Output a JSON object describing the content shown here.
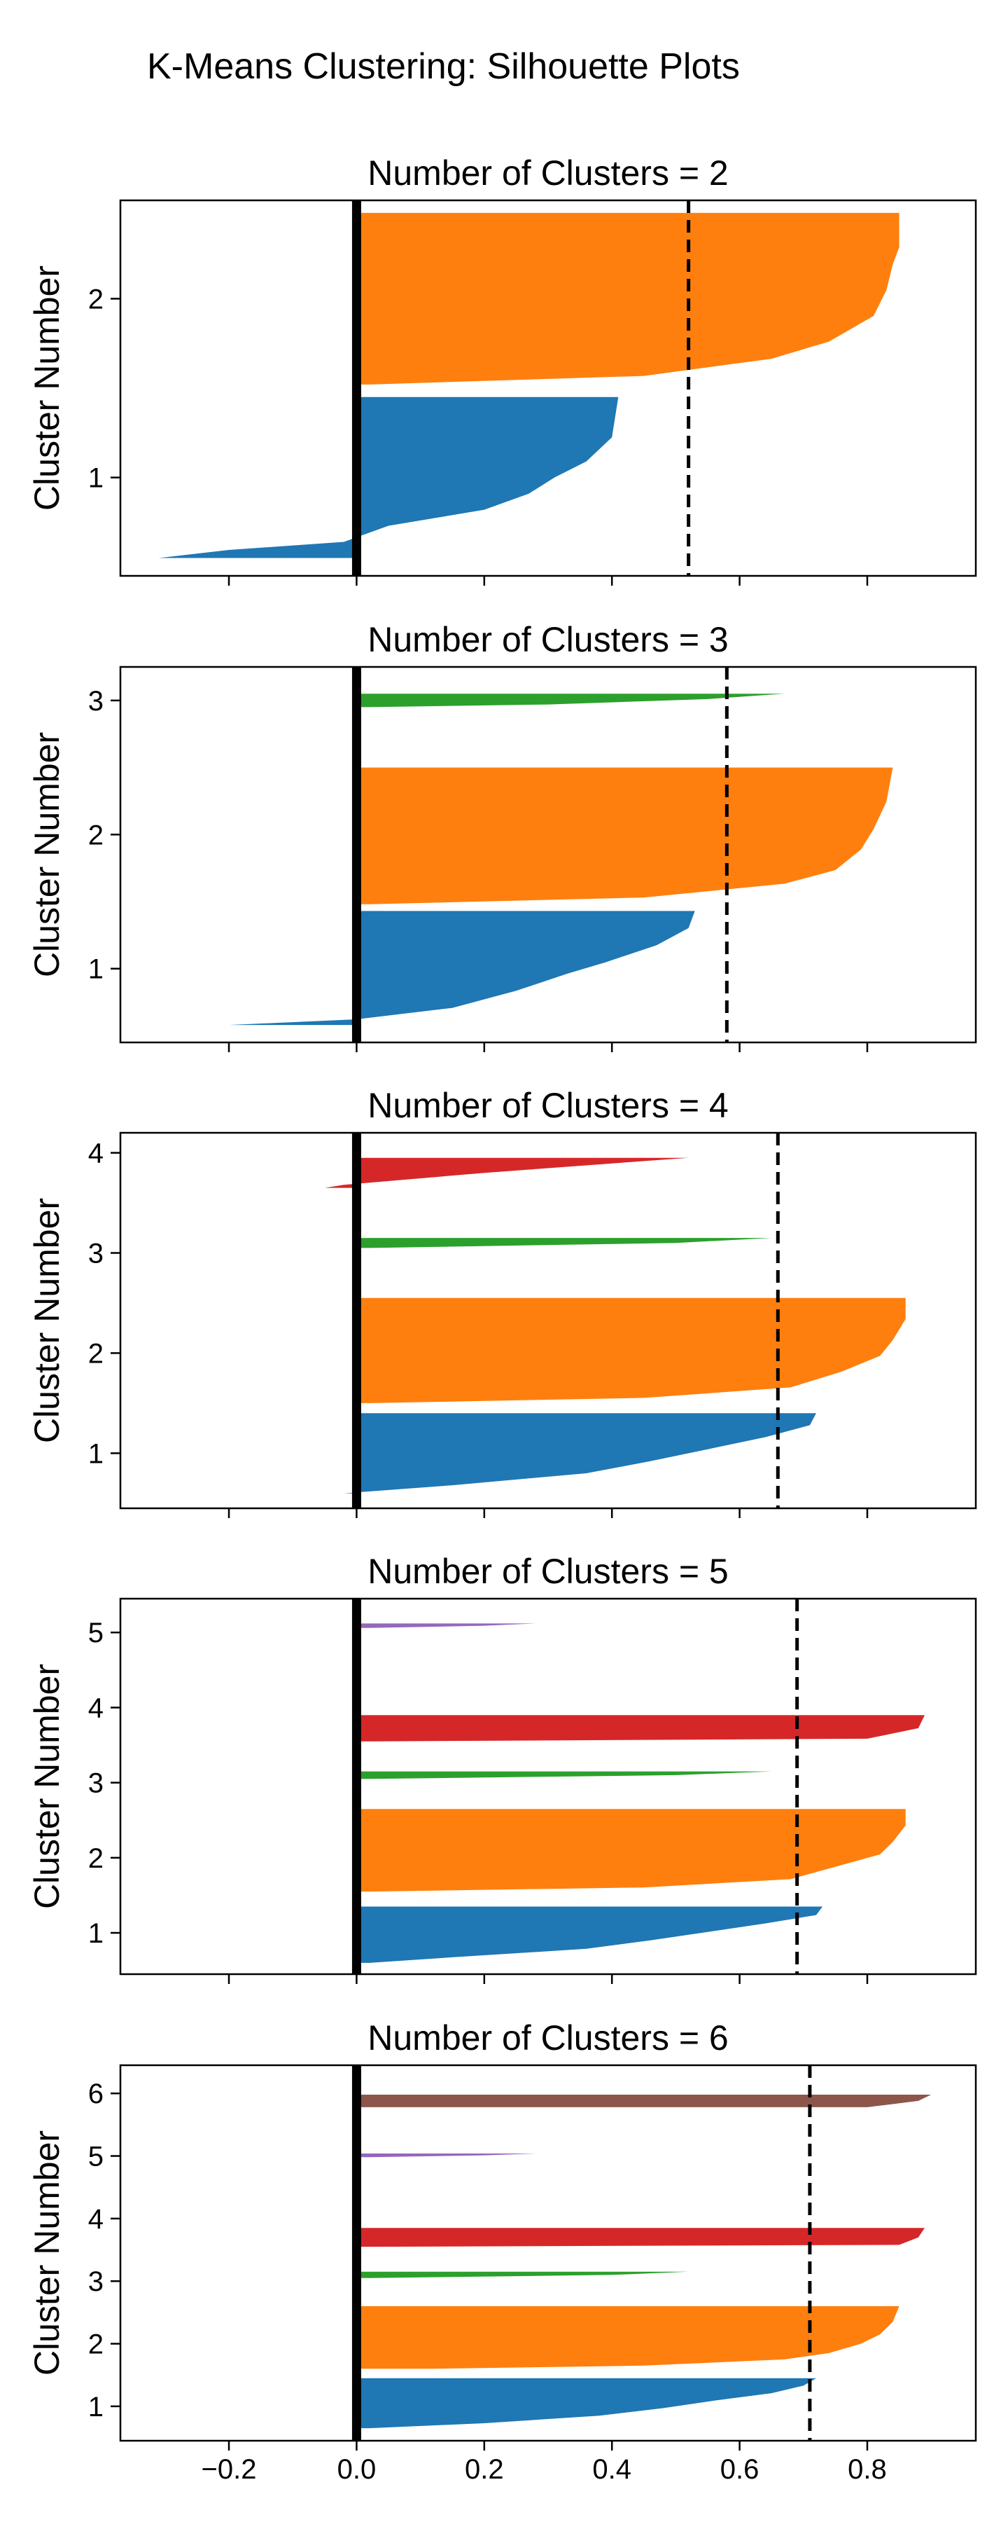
{
  "figure": {
    "suptitle": "K-Means Clustering: Silhouette Plots"
  },
  "colors": {
    "1": "#1f77b4",
    "2": "#ff7f0e",
    "3": "#2ca02c",
    "4": "#d62728",
    "5": "#9467bd",
    "6": "#8c564b",
    "zero_line": "#000000",
    "avg_line": "#000000"
  },
  "chart_data": [
    {
      "type": "area",
      "title": "Number of Clusters = 2",
      "ylabel": "Cluster Number",
      "xlim": [
        -0.37,
        0.97
      ],
      "xticks": [
        "−0.2",
        "0.0",
        "0.2",
        "0.4",
        "0.6",
        "0.8"
      ],
      "xtick_values": [
        -0.2,
        0.0,
        0.2,
        0.4,
        0.6,
        0.8
      ],
      "show_xtick_labels": false,
      "ylim": [
        0.45,
        2.55
      ],
      "yticks": [
        "1",
        "2"
      ],
      "ytick_values": [
        1,
        2
      ],
      "avg_silhouette": 0.52,
      "series": [
        {
          "name": "1",
          "y_range": [
            0.55,
            1.45
          ],
          "profile": [
            [
              0,
              0.41
            ],
            [
              0.25,
              0.4
            ],
            [
              0.4,
              0.36
            ],
            [
              0.5,
              0.31
            ],
            [
              0.6,
              0.27
            ],
            [
              0.7,
              0.2
            ],
            [
              0.8,
              0.05
            ],
            [
              0.9,
              -0.02
            ],
            [
              0.95,
              -0.2
            ],
            [
              1,
              -0.31
            ]
          ]
        },
        {
          "name": "2",
          "y_range": [
            1.52,
            2.48
          ],
          "profile": [
            [
              0,
              0.85
            ],
            [
              0.2,
              0.85
            ],
            [
              0.3,
              0.84
            ],
            [
              0.45,
              0.83
            ],
            [
              0.6,
              0.81
            ],
            [
              0.75,
              0.74
            ],
            [
              0.85,
              0.65
            ],
            [
              0.95,
              0.45
            ],
            [
              1,
              0.02
            ]
          ]
        }
      ]
    },
    {
      "type": "area",
      "title": "Number of Clusters = 3",
      "ylabel": "Cluster Number",
      "xlim": [
        -0.37,
        0.97
      ],
      "xticks": [
        "−0.2",
        "0.0",
        "0.2",
        "0.4",
        "0.6",
        "0.8"
      ],
      "xtick_values": [
        -0.2,
        0.0,
        0.2,
        0.4,
        0.6,
        0.8
      ],
      "show_xtick_labels": false,
      "ylim": [
        0.45,
        3.25
      ],
      "yticks": [
        "1",
        "2",
        "3"
      ],
      "ytick_values": [
        1,
        2,
        3
      ],
      "avg_silhouette": 0.58,
      "series": [
        {
          "name": "1",
          "y_range": [
            0.58,
            1.43
          ],
          "profile": [
            [
              0,
              0.53
            ],
            [
              0.15,
              0.52
            ],
            [
              0.3,
              0.47
            ],
            [
              0.45,
              0.39
            ],
            [
              0.55,
              0.33
            ],
            [
              0.7,
              0.25
            ],
            [
              0.85,
              0.15
            ],
            [
              0.95,
              0.0
            ],
            [
              1,
              -0.2
            ]
          ]
        },
        {
          "name": "2",
          "y_range": [
            1.48,
            2.5
          ],
          "profile": [
            [
              0,
              0.84
            ],
            [
              0.25,
              0.83
            ],
            [
              0.45,
              0.81
            ],
            [
              0.6,
              0.79
            ],
            [
              0.75,
              0.75
            ],
            [
              0.85,
              0.67
            ],
            [
              0.95,
              0.45
            ],
            [
              1,
              0.02
            ]
          ]
        },
        {
          "name": "3",
          "y_range": [
            2.95,
            3.05
          ],
          "profile": [
            [
              0,
              0.67
            ],
            [
              0.4,
              0.55
            ],
            [
              0.8,
              0.3
            ],
            [
              1,
              0.02
            ]
          ]
        }
      ]
    },
    {
      "type": "area",
      "title": "Number of Clusters = 4",
      "ylabel": "Cluster Number",
      "xlim": [
        -0.37,
        0.97
      ],
      "xticks": [
        "−0.2",
        "0.0",
        "0.2",
        "0.4",
        "0.6",
        "0.8"
      ],
      "xtick_values": [
        -0.2,
        0.0,
        0.2,
        0.4,
        0.6,
        0.8
      ],
      "show_xtick_labels": false,
      "ylim": [
        0.45,
        4.2
      ],
      "yticks": [
        "1",
        "2",
        "3",
        "4"
      ],
      "ytick_values": [
        1,
        2,
        3,
        4
      ],
      "avg_silhouette": 0.66,
      "series": [
        {
          "name": "1",
          "y_range": [
            0.6,
            1.4
          ],
          "profile": [
            [
              0,
              0.72
            ],
            [
              0.15,
              0.71
            ],
            [
              0.3,
              0.64
            ],
            [
              0.45,
              0.55
            ],
            [
              0.6,
              0.46
            ],
            [
              0.75,
              0.36
            ],
            [
              0.9,
              0.15
            ],
            [
              1,
              -0.02
            ]
          ]
        },
        {
          "name": "2",
          "y_range": [
            1.5,
            2.55
          ],
          "profile": [
            [
              0,
              0.86
            ],
            [
              0.2,
              0.86
            ],
            [
              0.4,
              0.84
            ],
            [
              0.55,
              0.82
            ],
            [
              0.7,
              0.76
            ],
            [
              0.85,
              0.68
            ],
            [
              0.95,
              0.45
            ],
            [
              1,
              0.02
            ]
          ]
        },
        {
          "name": "3",
          "y_range": [
            3.05,
            3.15
          ],
          "profile": [
            [
              0,
              0.65
            ],
            [
              0.5,
              0.5
            ],
            [
              1,
              0.02
            ]
          ]
        },
        {
          "name": "4",
          "y_range": [
            3.65,
            3.95
          ],
          "profile": [
            [
              0,
              0.52
            ],
            [
              0.5,
              0.2
            ],
            [
              0.9,
              -0.02
            ],
            [
              1,
              -0.05
            ]
          ]
        }
      ]
    },
    {
      "type": "area",
      "title": "Number of Clusters = 5",
      "ylabel": "Cluster Number",
      "xlim": [
        -0.37,
        0.97
      ],
      "xticks": [
        "−0.2",
        "0.0",
        "0.2",
        "0.4",
        "0.6",
        "0.8"
      ],
      "xtick_values": [
        -0.2,
        0.0,
        0.2,
        0.4,
        0.6,
        0.8
      ],
      "show_xtick_labels": false,
      "ylim": [
        0.45,
        5.45
      ],
      "yticks": [
        "1",
        "2",
        "3",
        "4",
        "5"
      ],
      "ytick_values": [
        1,
        2,
        3,
        4,
        5
      ],
      "avg_silhouette": 0.69,
      "series": [
        {
          "name": "1",
          "y_range": [
            0.6,
            1.35
          ],
          "profile": [
            [
              0,
              0.73
            ],
            [
              0.15,
              0.72
            ],
            [
              0.3,
              0.64
            ],
            [
              0.45,
              0.55
            ],
            [
              0.6,
              0.46
            ],
            [
              0.75,
              0.36
            ],
            [
              0.9,
              0.15
            ],
            [
              1,
              0.02
            ]
          ]
        },
        {
          "name": "2",
          "y_range": [
            1.55,
            2.65
          ],
          "profile": [
            [
              0,
              0.86
            ],
            [
              0.2,
              0.86
            ],
            [
              0.4,
              0.84
            ],
            [
              0.55,
              0.82
            ],
            [
              0.7,
              0.75
            ],
            [
              0.85,
              0.68
            ],
            [
              0.95,
              0.45
            ],
            [
              1,
              0.02
            ]
          ]
        },
        {
          "name": "3",
          "y_range": [
            3.05,
            3.15
          ],
          "profile": [
            [
              0,
              0.65
            ],
            [
              0.5,
              0.5
            ],
            [
              1,
              0.02
            ]
          ]
        },
        {
          "name": "4",
          "y_range": [
            3.55,
            3.9
          ],
          "profile": [
            [
              0,
              0.89
            ],
            [
              0.5,
              0.88
            ],
            [
              0.9,
              0.8
            ],
            [
              1,
              0.02
            ]
          ]
        },
        {
          "name": "5",
          "y_range": [
            5.06,
            5.12
          ],
          "profile": [
            [
              0,
              0.28
            ],
            [
              0.5,
              0.2
            ],
            [
              1,
              0.02
            ]
          ]
        }
      ]
    },
    {
      "type": "area",
      "title": "Number of Clusters = 6",
      "ylabel": "Cluster Number",
      "xlim": [
        -0.37,
        0.97
      ],
      "xticks": [
        "−0.2",
        "0.0",
        "0.2",
        "0.4",
        "0.6",
        "0.8"
      ],
      "xtick_values": [
        -0.2,
        0.0,
        0.2,
        0.4,
        0.6,
        0.8
      ],
      "show_xtick_labels": true,
      "ylim": [
        0.45,
        6.45
      ],
      "yticks": [
        "1",
        "2",
        "3",
        "4",
        "5",
        "6"
      ],
      "ytick_values": [
        1,
        2,
        3,
        4,
        5,
        6
      ],
      "avg_silhouette": 0.71,
      "series": [
        {
          "name": "1",
          "y_range": [
            0.65,
            1.45
          ],
          "profile": [
            [
              0,
              0.72
            ],
            [
              0.15,
              0.7
            ],
            [
              0.3,
              0.65
            ],
            [
              0.45,
              0.56
            ],
            [
              0.6,
              0.48
            ],
            [
              0.75,
              0.38
            ],
            [
              0.9,
              0.2
            ],
            [
              1,
              0.02
            ]
          ]
        },
        {
          "name": "2",
          "y_range": [
            1.6,
            2.6
          ],
          "profile": [
            [
              0,
              0.85
            ],
            [
              0.25,
              0.84
            ],
            [
              0.45,
              0.82
            ],
            [
              0.6,
              0.79
            ],
            [
              0.75,
              0.74
            ],
            [
              0.85,
              0.67
            ],
            [
              0.95,
              0.45
            ],
            [
              1,
              0.12
            ]
          ]
        },
        {
          "name": "3",
          "y_range": [
            3.05,
            3.15
          ],
          "profile": [
            [
              0,
              0.52
            ],
            [
              0.5,
              0.4
            ],
            [
              1,
              0.02
            ]
          ]
        },
        {
          "name": "4",
          "y_range": [
            3.55,
            3.85
          ],
          "profile": [
            [
              0,
              0.89
            ],
            [
              0.5,
              0.88
            ],
            [
              0.9,
              0.85
            ],
            [
              1,
              0.02
            ]
          ]
        },
        {
          "name": "5",
          "y_range": [
            4.98,
            5.04
          ],
          "profile": [
            [
              0,
              0.28
            ],
            [
              0.5,
              0.2
            ],
            [
              1,
              0.02
            ]
          ]
        },
        {
          "name": "6",
          "y_range": [
            5.78,
            5.98
          ],
          "profile": [
            [
              0,
              0.9
            ],
            [
              0.5,
              0.88
            ],
            [
              1,
              0.8
            ]
          ]
        }
      ]
    }
  ]
}
